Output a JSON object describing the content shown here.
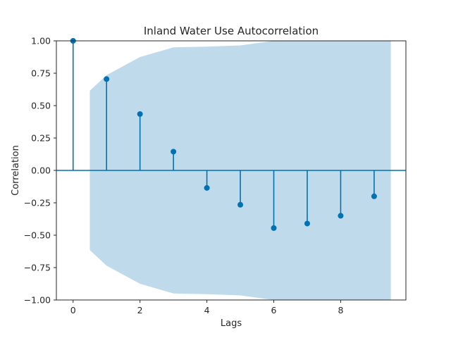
{
  "chart_data": {
    "type": "scatter",
    "title": "Inland Water Use Autocorrelation",
    "xlabel": "Lags",
    "ylabel": "Correlation",
    "xlim": [
      -0.5,
      9.95
    ],
    "ylim": [
      -1.0,
      1.0
    ],
    "x_ticks": [
      0,
      2,
      4,
      6,
      8
    ],
    "y_ticks": [
      -1.0,
      -0.75,
      -0.5,
      -0.25,
      0.0,
      0.25,
      0.5,
      0.75,
      1.0
    ],
    "x_tick_labels": [
      "0",
      "2",
      "4",
      "6",
      "8"
    ],
    "y_tick_labels": [
      "−1.00",
      "−0.75",
      "−0.50",
      "−0.25",
      "0.00",
      "0.25",
      "0.50",
      "0.75",
      "1.00"
    ],
    "grid": false,
    "series": [
      {
        "x": [
          0,
          1,
          2,
          3,
          4,
          5,
          6,
          7,
          8,
          9
        ],
        "y": [
          1.0,
          0.705,
          0.435,
          0.145,
          -0.135,
          -0.265,
          -0.445,
          -0.41,
          -0.35,
          -0.2
        ]
      }
    ],
    "confidence_band": {
      "x": [
        0.5,
        1,
        2,
        3,
        4,
        5,
        6,
        7,
        8,
        9,
        9.5
      ],
      "upper": [
        0.615,
        0.735,
        0.875,
        0.95,
        0.955,
        0.965,
        1.0,
        1.0,
        1.0,
        1.0,
        1.0
      ],
      "lower": [
        -0.615,
        -0.735,
        -0.875,
        -0.95,
        -0.955,
        -0.965,
        -1.0,
        -1.0,
        -1.0,
        -1.0,
        -1.0
      ]
    },
    "colors": {
      "stem": "#0072b2",
      "band": "#a6cce3",
      "axes": "#262626",
      "text": "#262626"
    }
  }
}
